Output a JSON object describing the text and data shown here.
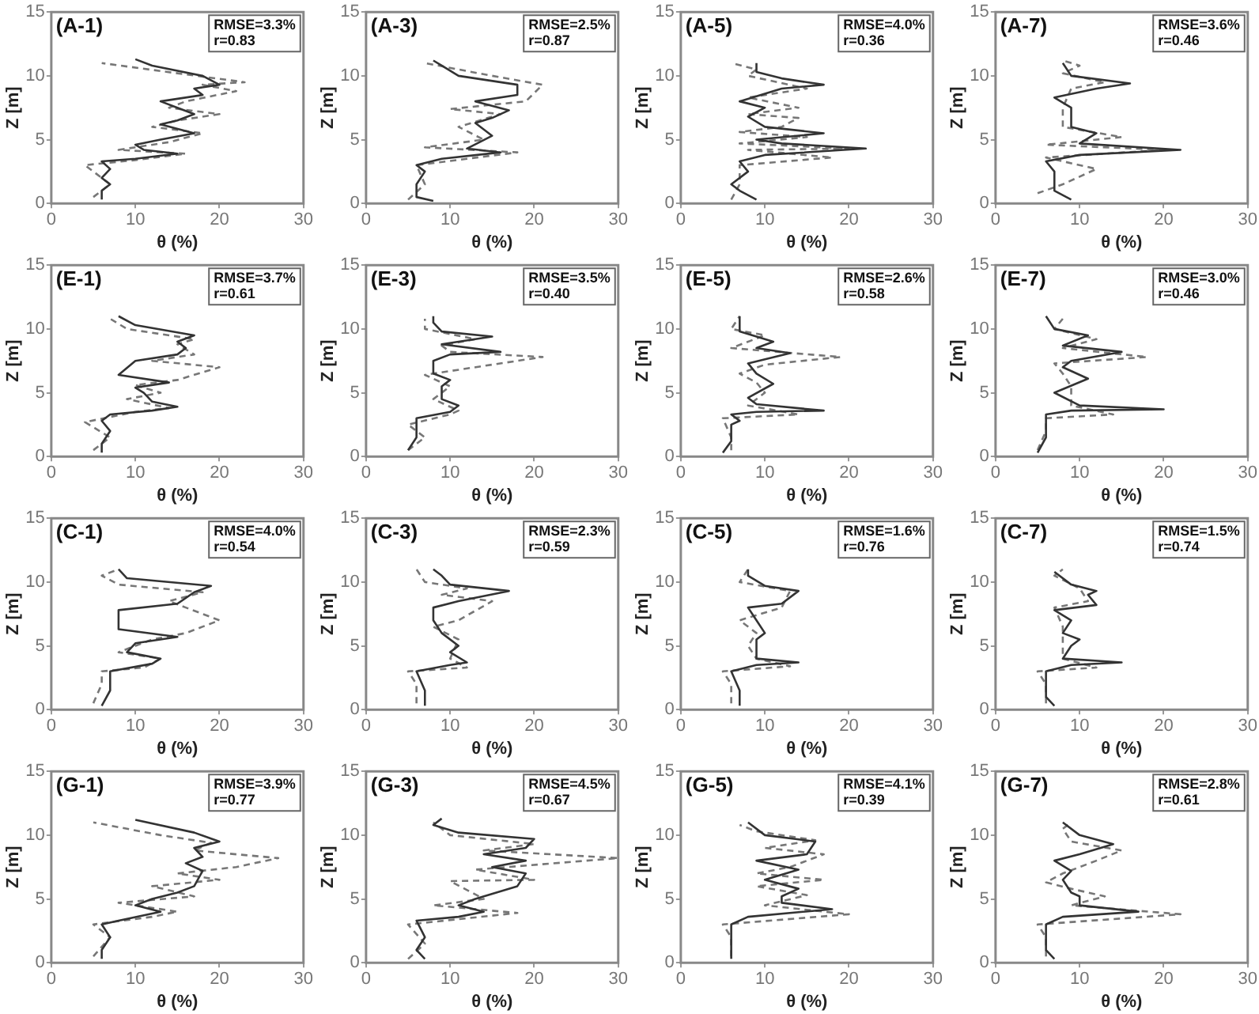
{
  "chart_data": [
    {
      "type": "line",
      "title": "(A-1)",
      "xlabel": "θ (%)",
      "ylabel": "Z [m]",
      "xlim": [
        0,
        30
      ],
      "xticks": [
        0,
        10,
        20,
        30
      ],
      "ylim": [
        0,
        15
      ],
      "yticks": [
        0,
        5,
        10,
        15
      ],
      "annotations": [
        "RMSE=3.3%",
        "r=0.83"
      ],
      "marker": "none",
      "series": [
        {
          "color": "#333333",
          "line_style": "solid",
          "x": [
            6,
            6,
            7,
            6,
            7,
            6,
            10,
            15,
            11,
            10,
            13,
            17,
            13,
            15,
            17,
            15,
            13,
            18,
            17,
            20,
            18,
            12,
            10
          ],
          "values": [
            0.3,
            1,
            1.5,
            2,
            2.7,
            3.3,
            3.5,
            3.9,
            4.2,
            4.6,
            5,
            5.5,
            6.2,
            6.5,
            7,
            7.5,
            8,
            8.5,
            9,
            9.3,
            10,
            10.8,
            11.3
          ]
        },
        {
          "color": "#777777",
          "line_style": "dashed",
          "x": [
            5,
            7,
            5,
            4,
            10,
            16,
            8,
            14,
            18,
            12,
            15,
            20,
            14,
            16,
            22,
            18,
            23,
            15,
            6
          ],
          "values": [
            0.5,
            1.5,
            2.5,
            3,
            3.4,
            3.9,
            4.2,
            4.8,
            5.5,
            6,
            6.5,
            7,
            7.5,
            8,
            8.8,
            9.3,
            9.5,
            10.2,
            11
          ]
        }
      ]
    },
    {
      "type": "line",
      "title": "(A-3)",
      "xlabel": "θ (%)",
      "ylabel": "Z [m]",
      "xlim": [
        0,
        30
      ],
      "xticks": [
        0,
        10,
        20,
        30
      ],
      "ylim": [
        0,
        15
      ],
      "yticks": [
        0,
        5,
        10,
        15
      ],
      "annotations": [
        "RMSE=2.5%",
        "r=0.87"
      ],
      "marker": "none",
      "series": [
        {
          "color": "#333333",
          "line_style": "solid",
          "x": [
            8,
            6,
            6,
            7,
            6,
            9,
            16,
            12,
            15,
            13,
            15,
            17,
            13,
            18,
            18,
            11,
            9,
            8
          ],
          "values": [
            0.2,
            0.5,
            1.5,
            2.5,
            3,
            3.5,
            4,
            4.3,
            5.3,
            6.3,
            6.7,
            7.3,
            8,
            8.5,
            9.3,
            10,
            10.8,
            11.2
          ]
        },
        {
          "color": "#777777",
          "line_style": "dashed",
          "x": [
            5,
            7,
            6,
            12,
            18,
            7,
            14,
            11,
            16,
            10,
            19,
            21,
            15,
            7
          ],
          "values": [
            0.3,
            1.5,
            3,
            3.5,
            4,
            4.4,
            5,
            6,
            7,
            7.4,
            8,
            9.3,
            10,
            11
          ]
        }
      ]
    },
    {
      "type": "line",
      "title": "(A-5)",
      "xlabel": "θ (%)",
      "ylabel": "Z [m]",
      "xlim": [
        0,
        30
      ],
      "xticks": [
        0,
        10,
        20,
        30
      ],
      "ylim": [
        0,
        15
      ],
      "yticks": [
        0,
        5,
        10,
        15
      ],
      "annotations": [
        "RMSE=4.0%",
        "r=0.36"
      ],
      "marker": "none",
      "series": [
        {
          "color": "#333333",
          "line_style": "solid",
          "x": [
            9,
            7,
            6,
            8,
            7,
            10,
            22,
            12,
            9,
            17,
            10,
            8,
            10,
            7,
            12,
            17,
            12,
            9,
            9
          ],
          "values": [
            0.3,
            1,
            1.5,
            2.5,
            3.3,
            3.8,
            4.3,
            4.7,
            5,
            5.5,
            6,
            6.8,
            7.5,
            8,
            9,
            9.3,
            9.8,
            10.3,
            11
          ]
        },
        {
          "color": "#777777",
          "line_style": "dashed",
          "x": [
            6,
            7,
            7,
            18,
            8,
            20,
            7,
            15,
            7,
            12,
            14,
            8,
            14,
            8,
            15,
            8,
            9,
            6
          ],
          "values": [
            0.3,
            1.5,
            3,
            3.6,
            4.2,
            4.3,
            4.7,
            5.2,
            5.6,
            6,
            6.7,
            7,
            7.5,
            8.3,
            9,
            10,
            10.5,
            11
          ]
        }
      ]
    },
    {
      "type": "line",
      "title": "(A-7)",
      "xlabel": "θ (%)",
      "ylabel": "Z [m]",
      "xlim": [
        0,
        30
      ],
      "xticks": [
        0,
        10,
        20,
        30
      ],
      "ylim": [
        0,
        15
      ],
      "yticks": [
        0,
        5,
        10,
        15
      ],
      "annotations": [
        "RMSE=3.6%",
        "r=0.46"
      ],
      "marker": "none",
      "series": [
        {
          "color": "#333333",
          "line_style": "solid",
          "x": [
            9,
            7,
            7,
            6,
            10,
            22,
            10,
            12,
            9,
            9,
            7,
            12,
            16,
            9,
            8
          ],
          "values": [
            0.3,
            1,
            2.5,
            3.3,
            3.8,
            4.2,
            4.7,
            5.5,
            6,
            7.5,
            8.3,
            9,
            9.4,
            10,
            11
          ]
        },
        {
          "color": "#777777",
          "line_style": "dashed",
          "x": [
            5,
            8,
            12,
            6,
            20,
            6,
            15,
            8,
            8,
            9,
            13,
            8,
            10,
            8
          ],
          "values": [
            0.8,
            1.5,
            2.7,
            3.6,
            4.2,
            4.6,
            5.2,
            6,
            7.5,
            9,
            9.5,
            10.2,
            10.8,
            11.2
          ]
        }
      ]
    },
    {
      "type": "line",
      "title": "(E-1)",
      "xlabel": "θ (%)",
      "ylabel": "Z [m]",
      "xlim": [
        0,
        30
      ],
      "xticks": [
        0,
        10,
        20,
        30
      ],
      "ylim": [
        0,
        15
      ],
      "yticks": [
        0,
        5,
        10,
        15
      ],
      "annotations": [
        "RMSE=3.7%",
        "r=0.61"
      ],
      "marker": "none",
      "series": [
        {
          "color": "#333333",
          "line_style": "solid",
          "x": [
            6,
            6,
            7,
            6,
            7,
            12,
            15,
            12,
            11,
            10,
            14,
            8,
            10,
            15,
            16,
            15,
            17,
            10,
            8
          ],
          "values": [
            0.3,
            1,
            2,
            2.8,
            3.3,
            3.6,
            3.9,
            4.3,
            5,
            5.4,
            5.8,
            6.4,
            7.5,
            8,
            8.5,
            9,
            9.5,
            10.3,
            11
          ]
        },
        {
          "color": "#777777",
          "line_style": "dashed",
          "x": [
            5,
            7,
            4,
            10,
            14,
            9,
            13,
            10,
            15,
            20,
            12,
            17,
            15,
            17,
            9,
            7
          ],
          "values": [
            0.5,
            1.5,
            2.7,
            3.5,
            3.8,
            4.5,
            5,
            5.6,
            6,
            7,
            7.5,
            8,
            8.8,
            9.2,
            10,
            10.8
          ]
        }
      ]
    },
    {
      "type": "line",
      "title": "(E-3)",
      "xlabel": "θ (%)",
      "ylabel": "Z [m]",
      "xlim": [
        0,
        30
      ],
      "xticks": [
        0,
        10,
        20,
        30
      ],
      "ylim": [
        0,
        15
      ],
      "yticks": [
        0,
        5,
        10,
        15
      ],
      "annotations": [
        "RMSE=3.5%",
        "r=0.40"
      ],
      "marker": "none",
      "series": [
        {
          "color": "#333333",
          "line_style": "solid",
          "x": [
            5,
            6,
            6,
            10,
            11,
            9,
            9,
            10,
            8,
            8,
            10,
            16,
            9,
            15,
            9,
            8,
            8
          ],
          "values": [
            0.5,
            1.5,
            3,
            3.5,
            4,
            4.5,
            5.5,
            6,
            6.5,
            7.5,
            8,
            8.2,
            8.8,
            9.4,
            9.8,
            10.5,
            11
          ]
        },
        {
          "color": "#777777",
          "line_style": "dashed",
          "x": [
            5,
            7,
            5,
            10,
            11,
            8,
            10,
            7,
            21,
            10,
            9,
            13,
            7,
            7
          ],
          "values": [
            0.5,
            1.5,
            2.5,
            3.3,
            3.6,
            4.5,
            5.5,
            6.4,
            7.8,
            8.2,
            8.7,
            9.2,
            10,
            10.8
          ]
        }
      ]
    },
    {
      "type": "line",
      "title": "(E-5)",
      "xlabel": "θ (%)",
      "ylabel": "Z [m]",
      "xlim": [
        0,
        30
      ],
      "xticks": [
        0,
        10,
        20,
        30
      ],
      "ylim": [
        0,
        15
      ],
      "yticks": [
        0,
        5,
        10,
        15
      ],
      "annotations": [
        "RMSE=2.6%",
        "r=0.58"
      ],
      "marker": "none",
      "series": [
        {
          "color": "#333333",
          "line_style": "solid",
          "x": [
            5,
            6,
            6,
            7,
            6,
            9,
            17,
            9,
            8,
            11,
            9,
            8,
            13,
            9,
            11,
            7,
            7
          ],
          "values": [
            0.3,
            1.2,
            2.5,
            2.8,
            3.3,
            3.5,
            3.6,
            4.1,
            4.6,
            5.7,
            6.5,
            7.3,
            8.1,
            8.5,
            9,
            9.8,
            11
          ]
        },
        {
          "color": "#777777",
          "line_style": "dashed",
          "x": [
            6,
            6,
            5,
            14,
            8,
            10,
            9,
            7,
            10,
            19,
            6,
            10,
            6,
            7
          ],
          "values": [
            0.5,
            1.5,
            3,
            3.3,
            4,
            5,
            5.8,
            6.5,
            7.2,
            7.8,
            8.5,
            9.5,
            10,
            11
          ]
        }
      ]
    },
    {
      "type": "line",
      "title": "(E-7)",
      "xlabel": "θ (%)",
      "ylabel": "Z [m]",
      "xlim": [
        0,
        30
      ],
      "xticks": [
        0,
        10,
        20,
        30
      ],
      "ylim": [
        0,
        15
      ],
      "yticks": [
        0,
        5,
        10,
        15
      ],
      "annotations": [
        "RMSE=3.0%",
        "r=0.46"
      ],
      "marker": "none",
      "series": [
        {
          "color": "#333333",
          "line_style": "solid",
          "x": [
            5,
            6,
            6,
            9,
            20,
            10,
            7,
            11,
            8,
            9,
            15,
            8,
            11,
            7,
            6
          ],
          "values": [
            0.3,
            1.5,
            3.3,
            3.6,
            3.7,
            4,
            5,
            6.1,
            7,
            7.5,
            8.2,
            8.7,
            9.5,
            10,
            11
          ]
        },
        {
          "color": "#777777",
          "line_style": "dashed",
          "x": [
            5,
            6,
            6,
            14,
            9,
            9,
            8,
            7,
            18,
            8,
            12,
            7,
            8
          ],
          "values": [
            0.5,
            2,
            3,
            3.3,
            4,
            5.5,
            6.5,
            7.3,
            7.8,
            8.5,
            9.2,
            10,
            10.8
          ]
        }
      ]
    },
    {
      "type": "line",
      "title": "(C-1)",
      "xlabel": "θ (%)",
      "ylabel": "Z [m]",
      "xlim": [
        0,
        30
      ],
      "xticks": [
        0,
        10,
        20,
        30
      ],
      "ylim": [
        0,
        15
      ],
      "yticks": [
        0,
        5,
        10,
        15
      ],
      "annotations": [
        "RMSE=4.0%",
        "r=0.54"
      ],
      "marker": "none",
      "series": [
        {
          "color": "#333333",
          "line_style": "solid",
          "x": [
            6,
            7,
            7,
            12,
            13,
            9,
            10,
            15,
            8,
            8,
            15,
            17,
            19,
            9,
            8
          ],
          "values": [
            0.3,
            1.5,
            3,
            3.6,
            4,
            4.5,
            5.2,
            5.7,
            6.3,
            7.8,
            8.3,
            9.2,
            9.7,
            10.3,
            11
          ]
        },
        {
          "color": "#777777",
          "line_style": "dashed",
          "x": [
            5,
            6,
            6,
            11,
            13,
            8,
            12,
            16,
            20,
            16,
            14,
            18,
            8,
            6,
            8
          ],
          "values": [
            0.5,
            2,
            3,
            3.3,
            4,
            4.5,
            5.5,
            6,
            7,
            8,
            8.5,
            9.2,
            9.8,
            10.5,
            11
          ]
        }
      ]
    },
    {
      "type": "line",
      "title": "(C-3)",
      "xlabel": "θ (%)",
      "ylabel": "Z [m]",
      "xlim": [
        0,
        30
      ],
      "xticks": [
        0,
        10,
        20,
        30
      ],
      "ylim": [
        0,
        15
      ],
      "yticks": [
        0,
        5,
        10,
        15
      ],
      "annotations": [
        "RMSE=2.3%",
        "r=0.59"
      ],
      "marker": "none",
      "series": [
        {
          "color": "#333333",
          "line_style": "solid",
          "x": [
            7,
            7,
            6,
            10,
            12,
            10,
            11,
            9,
            8,
            8,
            11,
            17,
            10,
            9,
            8
          ],
          "values": [
            0.3,
            1.5,
            3,
            3.5,
            3.7,
            4.5,
            5,
            6,
            7,
            8,
            8.5,
            9.3,
            9.8,
            10.5,
            11
          ]
        },
        {
          "color": "#777777",
          "line_style": "dashed",
          "x": [
            6,
            6,
            5,
            12,
            10,
            11,
            8,
            11,
            15,
            9,
            12,
            7,
            6
          ],
          "values": [
            0.5,
            2,
            3,
            3.3,
            4,
            5.5,
            6.5,
            7,
            8.5,
            9,
            9.5,
            10,
            11
          ]
        }
      ]
    },
    {
      "type": "line",
      "title": "(C-5)",
      "xlabel": "θ (%)",
      "ylabel": "Z [m]",
      "xlim": [
        0,
        30
      ],
      "xticks": [
        0,
        10,
        20,
        30
      ],
      "ylim": [
        0,
        15
      ],
      "yticks": [
        0,
        5,
        10,
        15
      ],
      "annotations": [
        "RMSE=1.6%",
        "r=0.76"
      ],
      "marker": "none",
      "series": [
        {
          "color": "#333333",
          "line_style": "solid",
          "x": [
            7,
            7,
            6,
            9,
            14,
            9,
            9,
            10,
            9,
            8,
            12,
            14,
            10,
            8,
            8
          ],
          "values": [
            0.3,
            1.5,
            3,
            3.5,
            3.7,
            4,
            5.5,
            6,
            7,
            8,
            8.3,
            9.3,
            9.7,
            10.5,
            11
          ]
        },
        {
          "color": "#777777",
          "line_style": "dashed",
          "x": [
            6,
            6,
            5,
            13,
            9,
            8,
            9,
            7,
            12,
            13,
            7,
            8
          ],
          "values": [
            0.5,
            2,
            3,
            3.4,
            4,
            5,
            6,
            7,
            8,
            9.3,
            10,
            11
          ]
        }
      ]
    },
    {
      "type": "line",
      "title": "(C-7)",
      "xlabel": "θ (%)",
      "ylabel": "Z [m]",
      "xlim": [
        0,
        30
      ],
      "xticks": [
        0,
        10,
        20,
        30
      ],
      "ylim": [
        0,
        15
      ],
      "yticks": [
        0,
        5,
        10,
        15
      ],
      "annotations": [
        "RMSE=1.5%",
        "r=0.74"
      ],
      "marker": "none",
      "series": [
        {
          "color": "#333333",
          "line_style": "solid",
          "x": [
            7,
            6,
            6,
            9,
            15,
            8,
            9,
            10,
            8,
            9,
            7,
            12,
            11,
            12,
            9,
            7
          ],
          "values": [
            0.3,
            1,
            3,
            3.5,
            3.7,
            4,
            5,
            5.5,
            6,
            7,
            7.8,
            8.2,
            9,
            9.3,
            9.8,
            10.8
          ]
        },
        {
          "color": "#777777",
          "line_style": "dashed",
          "x": [
            6,
            6,
            5,
            12,
            8,
            8,
            8,
            7,
            11,
            10,
            7,
            8
          ],
          "values": [
            0.5,
            2,
            3,
            3.3,
            4,
            5,
            6.5,
            8,
            8.5,
            9.5,
            10.5,
            11
          ]
        }
      ]
    },
    {
      "type": "line",
      "title": "(G-1)",
      "xlabel": "θ (%)",
      "ylabel": "Z [m]",
      "xlim": [
        0,
        30
      ],
      "xticks": [
        0,
        10,
        20,
        30
      ],
      "ylim": [
        0,
        15
      ],
      "yticks": [
        0,
        5,
        10,
        15
      ],
      "annotations": [
        "RMSE=3.9%",
        "r=0.77"
      ],
      "marker": "none",
      "series": [
        {
          "color": "#333333",
          "line_style": "solid",
          "x": [
            6,
            6,
            7,
            6,
            8,
            13,
            10,
            12,
            15,
            17,
            18,
            16,
            18,
            17,
            20,
            17,
            10
          ],
          "values": [
            0.3,
            1,
            2,
            3,
            3.3,
            4,
            4.5,
            5,
            5.5,
            6,
            7.2,
            7.8,
            8.3,
            9,
            9.5,
            10.2,
            11.2
          ]
        },
        {
          "color": "#777777",
          "line_style": "dashed",
          "x": [
            5,
            7,
            5,
            12,
            15,
            8,
            17,
            12,
            20,
            15,
            22,
            27,
            17,
            19,
            13,
            5
          ],
          "values": [
            0.5,
            2,
            3,
            3.6,
            4,
            4.7,
            5.2,
            6,
            6.5,
            7,
            7.5,
            8.2,
            8.8,
            9.4,
            10,
            11
          ]
        }
      ]
    },
    {
      "type": "line",
      "title": "(G-3)",
      "xlabel": "θ (%)",
      "ylabel": "Z [m]",
      "xlim": [
        0,
        30
      ],
      "xticks": [
        0,
        10,
        20,
        30
      ],
      "ylim": [
        0,
        15
      ],
      "yticks": [
        0,
        5,
        10,
        15
      ],
      "annotations": [
        "RMSE=4.5%",
        "r=0.67"
      ],
      "marker": "none",
      "series": [
        {
          "color": "#333333",
          "line_style": "solid",
          "x": [
            7,
            6,
            7,
            6,
            11,
            14,
            11,
            13,
            18,
            19,
            15,
            19,
            14,
            19,
            20,
            11,
            8,
            9
          ],
          "values": [
            0.3,
            1,
            2,
            3.3,
            3.6,
            4,
            4.5,
            5,
            6,
            7,
            7.5,
            8,
            8.5,
            9,
            9.7,
            10.2,
            10.8,
            11.3
          ]
        },
        {
          "color": "#777777",
          "line_style": "dashed",
          "x": [
            5,
            7,
            5,
            18,
            8,
            14,
            10,
            20,
            13,
            30,
            14,
            20,
            10,
            8
          ],
          "values": [
            0.3,
            1.5,
            3,
            3.9,
            4.5,
            5,
            6.4,
            6.5,
            7.3,
            8.2,
            8.8,
            9.3,
            10,
            11
          ]
        }
      ]
    },
    {
      "type": "line",
      "title": "(G-5)",
      "xlabel": "θ (%)",
      "ylabel": "Z [m]",
      "xlim": [
        0,
        30
      ],
      "xticks": [
        0,
        10,
        20,
        30
      ],
      "ylim": [
        0,
        15
      ],
      "yticks": [
        0,
        5,
        10,
        15
      ],
      "annotations": [
        "RMSE=4.1%",
        "r=0.39"
      ],
      "marker": "none",
      "series": [
        {
          "color": "#333333",
          "line_style": "solid",
          "x": [
            6,
            6,
            8,
            18,
            12,
            12,
            14,
            10,
            14,
            9,
            15,
            16,
            10,
            8
          ],
          "values": [
            0.3,
            3,
            3.6,
            4.2,
            4.7,
            5.2,
            5.8,
            6.5,
            7.3,
            8,
            8.5,
            9.5,
            10,
            11
          ]
        },
        {
          "color": "#777777",
          "line_style": "dashed",
          "x": [
            6,
            6,
            5,
            20,
            10,
            15,
            9,
            17,
            9,
            13,
            17,
            10,
            16,
            9,
            7
          ],
          "values": [
            0.5,
            2,
            3,
            3.8,
            4.5,
            5.3,
            6,
            6.5,
            7,
            7.5,
            8.5,
            9,
            9.6,
            10.3,
            10.8
          ]
        }
      ]
    },
    {
      "type": "line",
      "title": "(G-7)",
      "xlabel": "θ (%)",
      "ylabel": "Z [m]",
      "xlim": [
        0,
        30
      ],
      "xticks": [
        0,
        10,
        20,
        30
      ],
      "ylim": [
        0,
        15
      ],
      "yticks": [
        0,
        5,
        10,
        15
      ],
      "annotations": [
        "RMSE=2.8%",
        "r=0.61"
      ],
      "marker": "none",
      "series": [
        {
          "color": "#333333",
          "line_style": "solid",
          "x": [
            7,
            6,
            6,
            8,
            17,
            10,
            10,
            9,
            8,
            9,
            7,
            10,
            14,
            10,
            8
          ],
          "values": [
            0.3,
            1,
            3,
            3.6,
            4,
            4.5,
            5.2,
            5.5,
            6.5,
            7.2,
            8,
            8.5,
            9.3,
            10,
            11
          ]
        },
        {
          "color": "#777777",
          "line_style": "dashed",
          "x": [
            6,
            6,
            5,
            22,
            9,
            13,
            9,
            6,
            8,
            12,
            15,
            9,
            8,
            9
          ],
          "values": [
            0.5,
            2,
            3,
            3.8,
            4.5,
            5.2,
            5.8,
            6.3,
            7,
            8,
            8.8,
            9.5,
            10.5,
            11
          ]
        }
      ]
    }
  ]
}
